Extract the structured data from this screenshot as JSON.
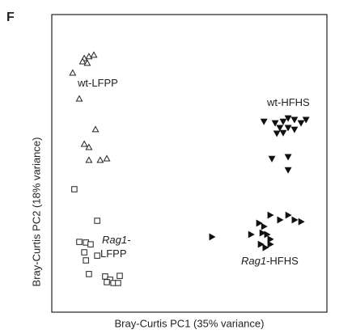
{
  "chart_data": {
    "type": "scatter",
    "panel_label": "F",
    "xlabel": "Bray-Curtis PC1 (35% variance)",
    "ylabel": "Bray-Curtis PC2 (18% variance)",
    "xlim": [
      0,
      100
    ],
    "ylim": [
      0,
      100
    ],
    "grid": false,
    "series": [
      {
        "marker": "triangle-up",
        "filled": false,
        "color": "#222222",
        "x": [
          11.8,
          13.5,
          15.3,
          11.2,
          12.9,
          7.6,
          10.0,
          15.9,
          11.8,
          13.5,
          13.5,
          17.6,
          20.0
        ],
        "values": [
          85.3,
          85.9,
          86.4,
          84.2,
          83.7,
          80.4,
          71.7,
          61.4,
          56.5,
          55.4,
          51.1,
          51.1,
          51.6
        ]
      },
      {
        "marker": "square",
        "filled": false,
        "color": "#222222",
        "x": [
          8.2,
          16.5,
          10.0,
          12.4,
          14.1,
          16.5,
          11.8,
          12.4,
          13.5,
          19.4,
          21.2,
          20.0,
          22.4,
          24.7,
          24.1
        ],
        "values": [
          41.3,
          30.7,
          23.6,
          23.4,
          22.8,
          19.0,
          20.1,
          17.4,
          12.8,
          12.0,
          10.9,
          10.1,
          9.8,
          12.2,
          9.8
        ]
      },
      {
        "marker": "triangle-down",
        "filled": true,
        "color": "#111111",
        "x": [
          77.1,
          81.2,
          84.1,
          85.9,
          88.2,
          90.6,
          92.4,
          82.9,
          85.9,
          88.2,
          81.8,
          84.1,
          80.0,
          85.9,
          85.9
        ],
        "values": [
          64.1,
          63.6,
          64.1,
          65.2,
          64.7,
          63.6,
          64.7,
          62.0,
          62.0,
          61.4,
          60.1,
          60.3,
          51.6,
          52.2,
          47.8
        ]
      },
      {
        "marker": "triangle-right",
        "filled": true,
        "color": "#111111",
        "x": [
          58.2,
          72.4,
          75.3,
          77.1,
          79.4,
          82.9,
          85.9,
          88.2,
          90.6,
          76.5,
          78.2,
          79.4,
          75.9,
          79.4,
          77.6
        ],
        "values": [
          25.3,
          26.1,
          29.9,
          28.8,
          32.6,
          31.0,
          32.6,
          31.0,
          30.4,
          26.6,
          26.1,
          24.5,
          22.8,
          22.8,
          21.7
        ]
      }
    ],
    "annotations": [
      {
        "text": "wt-LFPP"
      },
      {
        "italic": "Rag1-",
        "text": "LFPP"
      },
      {
        "text": "wt-HFHS"
      },
      {
        "italic": "Rag1",
        "text": "-HFHS"
      }
    ]
  }
}
